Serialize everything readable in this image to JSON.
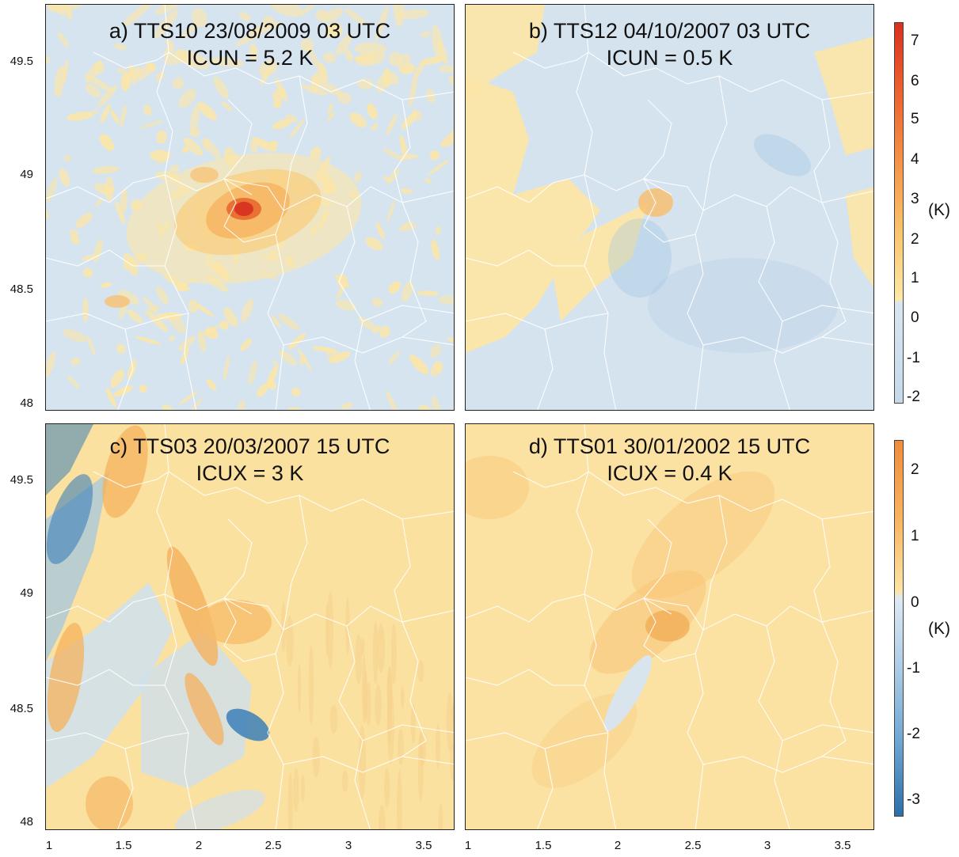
{
  "panels": [
    {
      "id": "a",
      "title_line1": "a) TTS10 23/08/2009 03 UTC",
      "title_line2": "ICUN = 5.2 K",
      "pattern": "urban_hot",
      "intensity": 5.2
    },
    {
      "id": "b",
      "title_line1": "b) TTS12 04/10/2007 03 UTC",
      "title_line2": "ICUN = 0.5 K",
      "pattern": "cool_bands",
      "intensity": 0.5
    },
    {
      "id": "c",
      "title_line1": "c) TTS03 20/03/2007 15 UTC",
      "title_line2": "ICUX = 3 K",
      "pattern": "streaks",
      "intensity": 3
    },
    {
      "id": "d",
      "title_line1": "d) TTS01 30/01/2002 15 UTC",
      "title_line2": "ICUX = 0.4 K",
      "pattern": "warm_uniform",
      "intensity": 0.4
    }
  ],
  "axes": {
    "y_ticks": [
      "49.5",
      "49",
      "48.5",
      "48"
    ],
    "x_ticks": [
      "1",
      "1.5",
      "2",
      "2.5",
      "3",
      "3.5"
    ]
  },
  "colorbars": [
    {
      "labels": [
        "7",
        "6",
        "5",
        "4",
        "3",
        "2",
        "1",
        "0",
        "-1",
        "-2"
      ],
      "unit": "(K)",
      "range": [
        -2,
        7.5
      ]
    },
    {
      "labels": [
        "2",
        "1",
        "0",
        "-1",
        "-2",
        "-3"
      ],
      "unit": "(K)",
      "range": [
        -3.2,
        2.4
      ]
    }
  ],
  "colors": {
    "cool_light": "#d6e4f0",
    "cool_mid": "#9ec4e3",
    "cool_dark": "#3c7fb8",
    "warm_light": "#fce6a6",
    "warm_mid": "#f5b25c",
    "warm_dark": "#e8642a",
    "hot": "#d7301f",
    "borders": "#ffffff"
  }
}
